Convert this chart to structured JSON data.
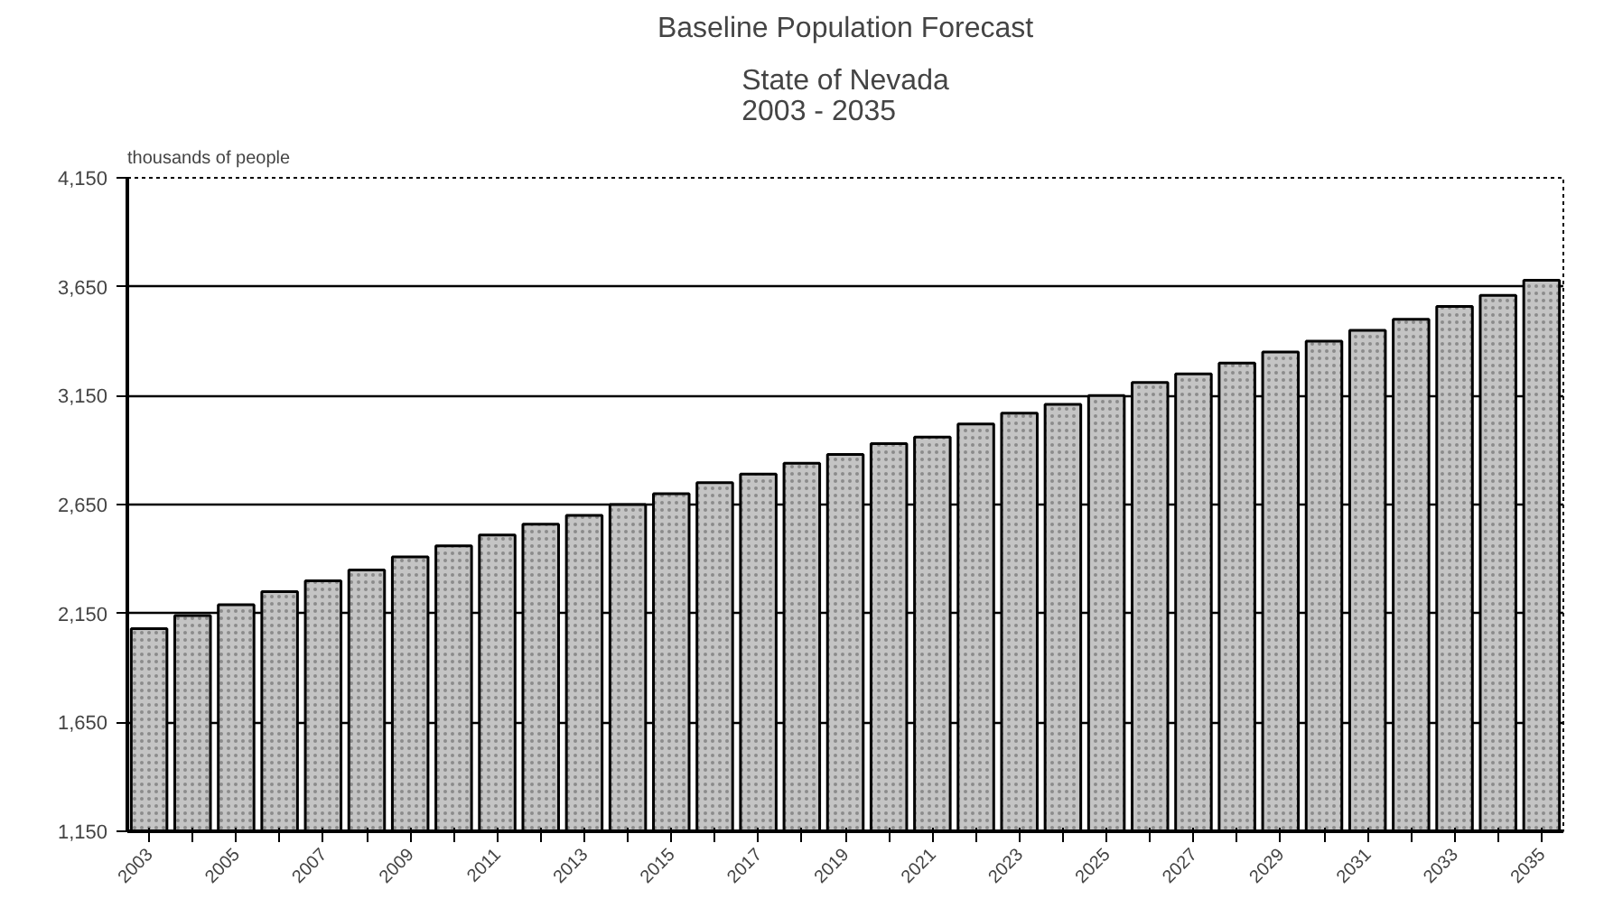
{
  "chart_data": {
    "type": "bar",
    "title": "Baseline Population Forecast",
    "subtitle": "State of Nevada\n2003 - 2035",
    "ylabel": "thousands of people",
    "categories": [
      "2003",
      null,
      "2005",
      null,
      "2007",
      null,
      "2009",
      null,
      "2011",
      null,
      "2013",
      null,
      "2015",
      null,
      "2017",
      null,
      "2019",
      null,
      "2021",
      null,
      "2023",
      null,
      "2025",
      null,
      "2027",
      null,
      "2029",
      null,
      "2031",
      null,
      "2033",
      null,
      "2035"
    ],
    "values": [
      2080,
      2140,
      2190,
      2250,
      2300,
      2350,
      2410,
      2460,
      2510,
      2560,
      2600,
      2650,
      2700,
      2750,
      2790,
      2840,
      2880,
      2930,
      2960,
      3020,
      3070,
      3110,
      3150,
      3210,
      3250,
      3300,
      3350,
      3400,
      3450,
      3500,
      3560,
      3610,
      3680
    ],
    "color": "#c4c4c4",
    "ylim": [
      1150,
      4150
    ],
    "yticks": [
      {
        "value": 1150,
        "label": "1,150"
      },
      {
        "value": 1650,
        "label": "1,650"
      },
      {
        "value": 2150,
        "label": "2,150"
      },
      {
        "value": 2650,
        "label": "2,650"
      },
      {
        "value": 3150,
        "label": "3,150"
      },
      {
        "value": 3650,
        "label": "3,650"
      },
      {
        "value": 4150,
        "label": "4,150"
      }
    ],
    "grid": "y"
  }
}
